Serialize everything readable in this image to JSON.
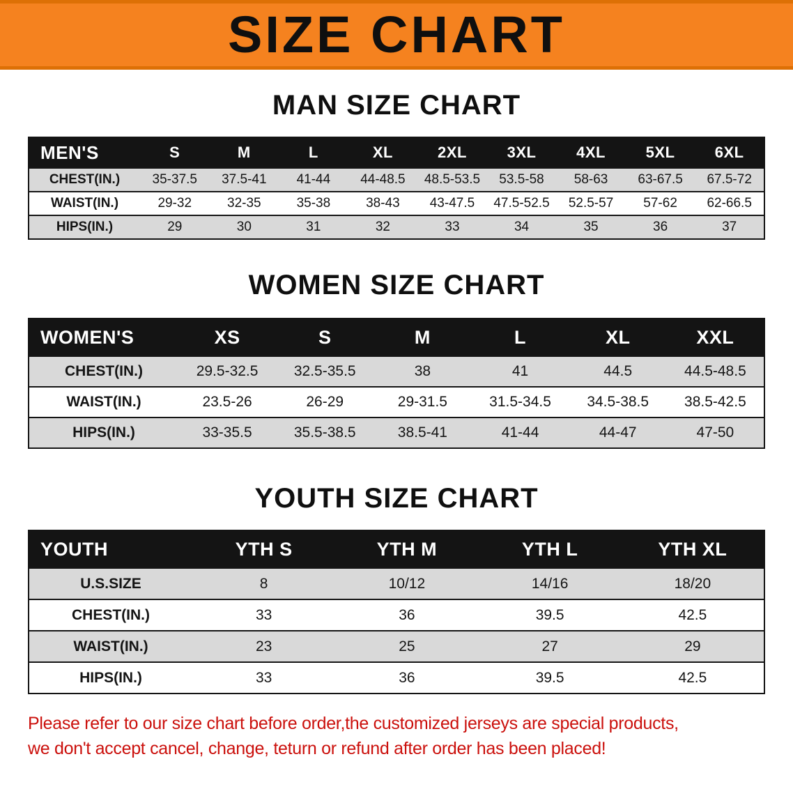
{
  "banner": {
    "title": "SIZE CHART"
  },
  "men": {
    "heading": "MAN SIZE CHART",
    "table": {
      "header": [
        "MEN'S",
        "S",
        "M",
        "L",
        "XL",
        "2XL",
        "3XL",
        "4XL",
        "5XL",
        "6XL"
      ],
      "rows": [
        {
          "label": "CHEST(IN.)",
          "values": [
            "35-37.5",
            "37.5-41",
            "41-44",
            "44-48.5",
            "48.5-53.5",
            "53.5-58",
            "58-63",
            "63-67.5",
            "67.5-72"
          ]
        },
        {
          "label": "WAIST(IN.)",
          "values": [
            "29-32",
            "32-35",
            "35-38",
            "38-43",
            "43-47.5",
            "47.5-52.5",
            "52.5-57",
            "57-62",
            "62-66.5"
          ]
        },
        {
          "label": "HIPS(IN.)",
          "values": [
            "29",
            "30",
            "31",
            "32",
            "33",
            "34",
            "35",
            "36",
            "37"
          ]
        }
      ]
    }
  },
  "women": {
    "heading": "WOMEN SIZE CHART",
    "table": {
      "header": [
        "WOMEN'S",
        "XS",
        "S",
        "M",
        "L",
        "XL",
        "XXL"
      ],
      "rows": [
        {
          "label": "CHEST(IN.)",
          "values": [
            "29.5-32.5",
            "32.5-35.5",
            "38",
            "41",
            "44.5",
            "44.5-48.5"
          ]
        },
        {
          "label": "WAIST(IN.)",
          "values": [
            "23.5-26",
            "26-29",
            "29-31.5",
            "31.5-34.5",
            "34.5-38.5",
            "38.5-42.5"
          ]
        },
        {
          "label": "HIPS(IN.)",
          "values": [
            "33-35.5",
            "35.5-38.5",
            "38.5-41",
            "41-44",
            "44-47",
            "47-50"
          ]
        }
      ]
    }
  },
  "youth": {
    "heading": "YOUTH SIZE CHART",
    "table": {
      "header": [
        "YOUTH",
        "YTH S",
        "YTH M",
        "YTH L",
        "YTH XL"
      ],
      "rows": [
        {
          "label": "U.S.SIZE",
          "values": [
            "8",
            "10/12",
            "14/16",
            "18/20"
          ]
        },
        {
          "label": "CHEST(IN.)",
          "values": [
            "33",
            "36",
            "39.5",
            "42.5"
          ]
        },
        {
          "label": "WAIST(IN.)",
          "values": [
            "23",
            "25",
            "27",
            "29"
          ]
        },
        {
          "label": "HIPS(IN.)",
          "values": [
            "33",
            "36",
            "39.5",
            "42.5"
          ]
        }
      ]
    }
  },
  "disclaimer": {
    "line1": "Please refer to our size chart before order,the customized jerseys are special products,",
    "line2": "we don't accept cancel, change, teturn or refund after order has been placed!"
  },
  "colors": {
    "page_bg": "#ffffff",
    "banner_bg": "#f5821f",
    "banner_edge": "#dd7005",
    "header_bg": "#141414",
    "header_text": "#ffffff",
    "row_alt_bg": "#d9d9d9",
    "text": "#141414",
    "line": "#141414",
    "disclaimer_text": "#cb100c"
  }
}
